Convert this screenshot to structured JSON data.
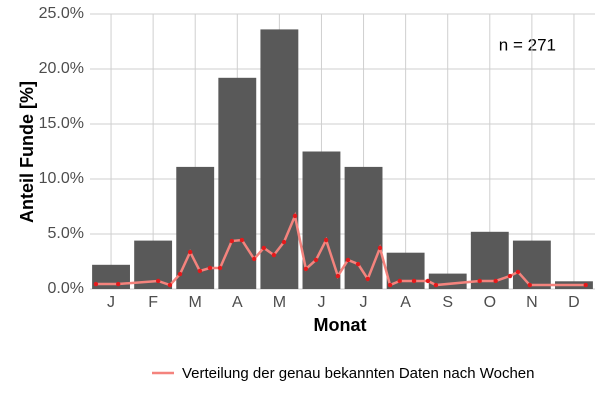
{
  "chart_data": {
    "type": "bar",
    "categories": [
      "J",
      "F",
      "M",
      "A",
      "M",
      "J",
      "J",
      "A",
      "S",
      "O",
      "N",
      "D"
    ],
    "values": [
      2.2,
      4.4,
      11.1,
      19.2,
      23.6,
      12.5,
      11.1,
      3.3,
      1.4,
      5.2,
      4.4,
      0.7
    ],
    "color": "#595959",
    "xlim": [
      0.5,
      12.5
    ],
    "ylim": [
      0,
      25
    ],
    "yticks": [
      {
        "value": 0,
        "label": "0.0%"
      },
      {
        "value": 5,
        "label": "5.0%"
      },
      {
        "value": 10,
        "label": "10.0%"
      },
      {
        "value": 15,
        "label": "15.0%"
      },
      {
        "value": 20,
        "label": "20.0%"
      },
      {
        "value": 25,
        "label": "25.0%"
      }
    ],
    "xlabel": "Monat",
    "ylabel": "Anteil Funde [%]",
    "annotation": "n = 271",
    "grid": true,
    "legend": "bottom",
    "line": {
      "name": "Verteilung der genau bekannten Daten nach Wochen",
      "color": "#f4837d",
      "point_color": "#e31a1c",
      "x": [
        0.64,
        1.17,
        2.12,
        2.4,
        2.64,
        2.88,
        3.11,
        3.35,
        3.59,
        3.87,
        4.11,
        4.4,
        4.63,
        4.87,
        5.11,
        5.37,
        5.63,
        5.87,
        6.11,
        6.39,
        6.63,
        6.87,
        7.1,
        7.39,
        7.63,
        7.86,
        8.2,
        8.53,
        8.72,
        9.76,
        10.14,
        10.48,
        10.67,
        10.95,
        12.28
      ],
      "values": [
        0.45,
        0.45,
        0.73,
        0.36,
        1.36,
        3.36,
        1.64,
        1.91,
        1.91,
        4.36,
        4.45,
        2.73,
        3.73,
        3.09,
        4.27,
        6.64,
        1.82,
        2.64,
        4.45,
        1.18,
        2.64,
        2.27,
        0.91,
        3.73,
        0.36,
        0.73,
        0.73,
        0.73,
        0.36,
        0.73,
        0.73,
        1.18,
        1.55,
        0.36,
        0.36
      ]
    }
  }
}
